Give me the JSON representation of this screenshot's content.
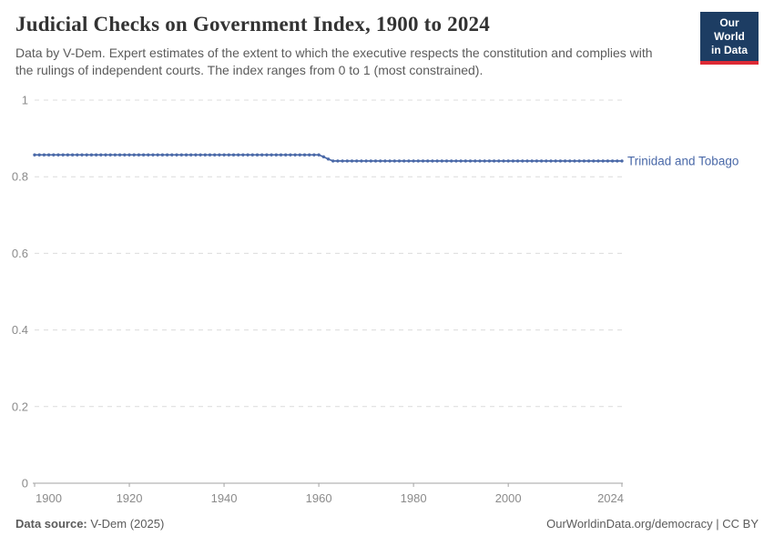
{
  "header": {
    "title": "Judicial Checks on Government Index, 1900 to 2024",
    "subtitle": "Data by V-Dem. Expert estimates of the extent to which the executive respects the constitution and complies with the rulings of independent courts. The index ranges from 0 to 1 (most constrained).",
    "logo": {
      "line1": "Our World",
      "line2": "in Data",
      "bg_color": "#1d3d63",
      "accent_color": "#dd2a35"
    }
  },
  "chart_data": {
    "type": "line",
    "title": "Judicial Checks on Government Index, 1900 to 2024",
    "xlabel": "",
    "ylabel": "",
    "x": {
      "min": 1900,
      "max": 2024,
      "ticks": [
        1900,
        1920,
        1940,
        1960,
        1980,
        2000,
        2024
      ]
    },
    "y": {
      "min": 0,
      "max": 1,
      "ticks": [
        0,
        0.2,
        0.4,
        0.6,
        0.8,
        1
      ],
      "grid": "dashed"
    },
    "legend_position": "end-of-line-label",
    "series": [
      {
        "name": "Trinidad and Tobago",
        "color": "#4a69a8",
        "marker": "circle",
        "segments": [
          {
            "from": 1900,
            "to": 1960,
            "value": 0.857
          },
          {
            "from": 1961,
            "to": 1961,
            "value": 0.852
          },
          {
            "from": 1962,
            "to": 1962,
            "value": 0.846
          },
          {
            "from": 1963,
            "to": 2024,
            "value": 0.841
          }
        ]
      }
    ],
    "style": {
      "gridline_color": "#dcdcdc",
      "axis_color": "#a3a3a3",
      "tick_label_color": "#8b8b8b"
    }
  },
  "footer": {
    "source_label": "Data source:",
    "source_value": " V-Dem (2025)",
    "credit": "OurWorldinData.org/democracy | CC BY"
  }
}
